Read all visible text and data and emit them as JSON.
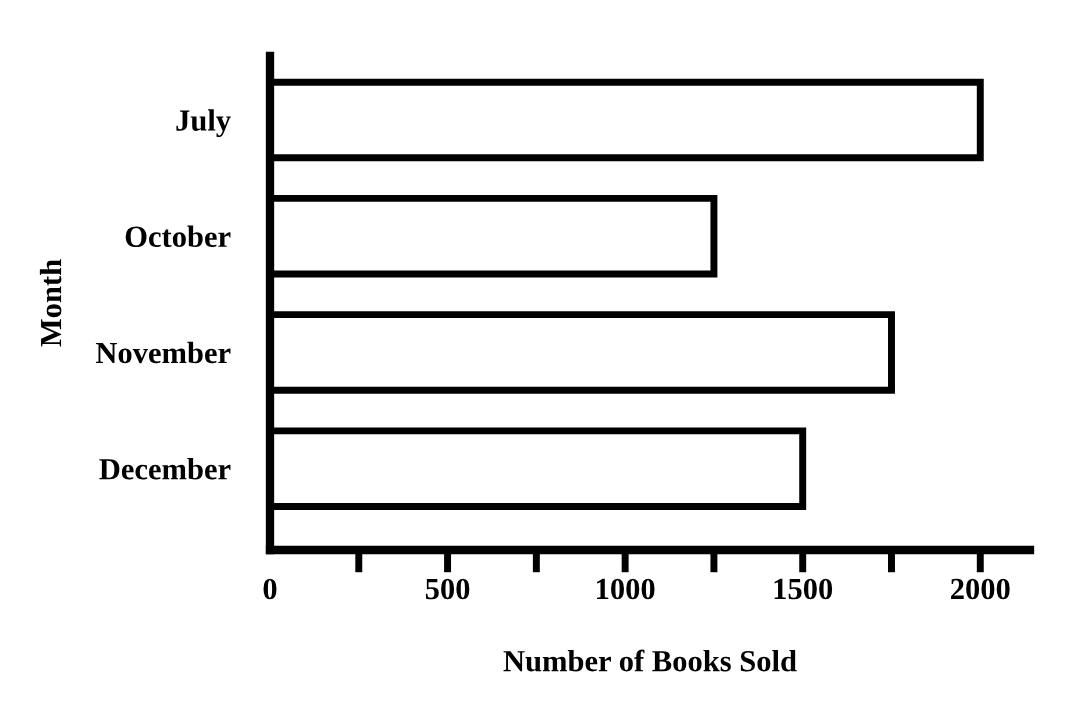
{
  "chart_data": {
    "type": "bar",
    "orientation": "horizontal",
    "xlabel": "Number of Books Sold",
    "ylabel": "Month",
    "categories": [
      "July",
      "October",
      "November",
      "December"
    ],
    "values": [
      2000,
      1250,
      1750,
      1500
    ],
    "color": "#ffffff",
    "xlim": [
      0,
      2140
    ],
    "xticks": [
      0,
      {
        "value": 250,
        "label": null
      },
      500,
      {
        "value": 750,
        "label": null
      },
      1000,
      {
        "value": 1250,
        "label": null
      },
      1500,
      {
        "value": 1750,
        "label": null
      },
      2000
    ],
    "grid": false
  }
}
